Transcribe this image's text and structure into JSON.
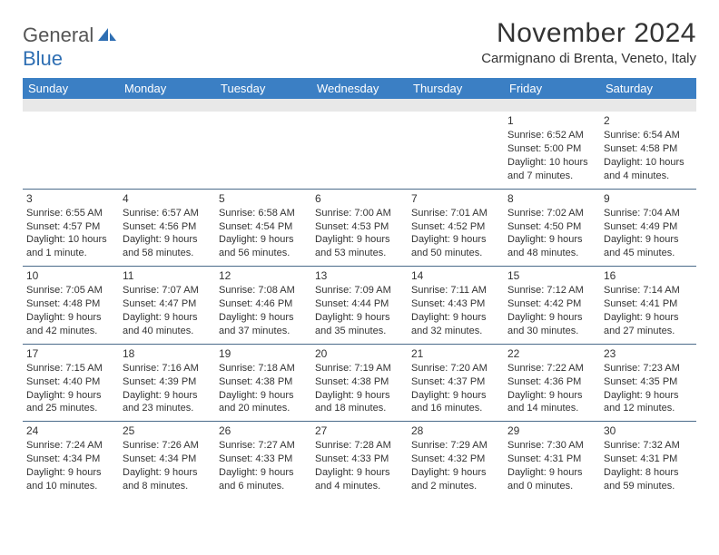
{
  "brand": {
    "general": "General",
    "blue": "Blue",
    "blue_color": "#2f6fb3"
  },
  "title": "November 2024",
  "location": "Carmignano di Brenta, Veneto, Italy",
  "colors": {
    "header_bg": "#3b7fc4",
    "header_text": "#ffffff",
    "band_bg": "#e8e8e8",
    "week_divider": "#4a6a8a",
    "text": "#333333",
    "page_bg": "#ffffff"
  },
  "days_of_week": [
    "Sunday",
    "Monday",
    "Tuesday",
    "Wednesday",
    "Thursday",
    "Friday",
    "Saturday"
  ],
  "weeks": [
    [
      null,
      null,
      null,
      null,
      null,
      {
        "n": "1",
        "sr": "Sunrise: 6:52 AM",
        "ss": "Sunset: 5:00 PM",
        "dl": "Daylight: 10 hours and 7 minutes."
      },
      {
        "n": "2",
        "sr": "Sunrise: 6:54 AM",
        "ss": "Sunset: 4:58 PM",
        "dl": "Daylight: 10 hours and 4 minutes."
      }
    ],
    [
      {
        "n": "3",
        "sr": "Sunrise: 6:55 AM",
        "ss": "Sunset: 4:57 PM",
        "dl": "Daylight: 10 hours and 1 minute."
      },
      {
        "n": "4",
        "sr": "Sunrise: 6:57 AM",
        "ss": "Sunset: 4:56 PM",
        "dl": "Daylight: 9 hours and 58 minutes."
      },
      {
        "n": "5",
        "sr": "Sunrise: 6:58 AM",
        "ss": "Sunset: 4:54 PM",
        "dl": "Daylight: 9 hours and 56 minutes."
      },
      {
        "n": "6",
        "sr": "Sunrise: 7:00 AM",
        "ss": "Sunset: 4:53 PM",
        "dl": "Daylight: 9 hours and 53 minutes."
      },
      {
        "n": "7",
        "sr": "Sunrise: 7:01 AM",
        "ss": "Sunset: 4:52 PM",
        "dl": "Daylight: 9 hours and 50 minutes."
      },
      {
        "n": "8",
        "sr": "Sunrise: 7:02 AM",
        "ss": "Sunset: 4:50 PM",
        "dl": "Daylight: 9 hours and 48 minutes."
      },
      {
        "n": "9",
        "sr": "Sunrise: 7:04 AM",
        "ss": "Sunset: 4:49 PM",
        "dl": "Daylight: 9 hours and 45 minutes."
      }
    ],
    [
      {
        "n": "10",
        "sr": "Sunrise: 7:05 AM",
        "ss": "Sunset: 4:48 PM",
        "dl": "Daylight: 9 hours and 42 minutes."
      },
      {
        "n": "11",
        "sr": "Sunrise: 7:07 AM",
        "ss": "Sunset: 4:47 PM",
        "dl": "Daylight: 9 hours and 40 minutes."
      },
      {
        "n": "12",
        "sr": "Sunrise: 7:08 AM",
        "ss": "Sunset: 4:46 PM",
        "dl": "Daylight: 9 hours and 37 minutes."
      },
      {
        "n": "13",
        "sr": "Sunrise: 7:09 AM",
        "ss": "Sunset: 4:44 PM",
        "dl": "Daylight: 9 hours and 35 minutes."
      },
      {
        "n": "14",
        "sr": "Sunrise: 7:11 AM",
        "ss": "Sunset: 4:43 PM",
        "dl": "Daylight: 9 hours and 32 minutes."
      },
      {
        "n": "15",
        "sr": "Sunrise: 7:12 AM",
        "ss": "Sunset: 4:42 PM",
        "dl": "Daylight: 9 hours and 30 minutes."
      },
      {
        "n": "16",
        "sr": "Sunrise: 7:14 AM",
        "ss": "Sunset: 4:41 PM",
        "dl": "Daylight: 9 hours and 27 minutes."
      }
    ],
    [
      {
        "n": "17",
        "sr": "Sunrise: 7:15 AM",
        "ss": "Sunset: 4:40 PM",
        "dl": "Daylight: 9 hours and 25 minutes."
      },
      {
        "n": "18",
        "sr": "Sunrise: 7:16 AM",
        "ss": "Sunset: 4:39 PM",
        "dl": "Daylight: 9 hours and 23 minutes."
      },
      {
        "n": "19",
        "sr": "Sunrise: 7:18 AM",
        "ss": "Sunset: 4:38 PM",
        "dl": "Daylight: 9 hours and 20 minutes."
      },
      {
        "n": "20",
        "sr": "Sunrise: 7:19 AM",
        "ss": "Sunset: 4:38 PM",
        "dl": "Daylight: 9 hours and 18 minutes."
      },
      {
        "n": "21",
        "sr": "Sunrise: 7:20 AM",
        "ss": "Sunset: 4:37 PM",
        "dl": "Daylight: 9 hours and 16 minutes."
      },
      {
        "n": "22",
        "sr": "Sunrise: 7:22 AM",
        "ss": "Sunset: 4:36 PM",
        "dl": "Daylight: 9 hours and 14 minutes."
      },
      {
        "n": "23",
        "sr": "Sunrise: 7:23 AM",
        "ss": "Sunset: 4:35 PM",
        "dl": "Daylight: 9 hours and 12 minutes."
      }
    ],
    [
      {
        "n": "24",
        "sr": "Sunrise: 7:24 AM",
        "ss": "Sunset: 4:34 PM",
        "dl": "Daylight: 9 hours and 10 minutes."
      },
      {
        "n": "25",
        "sr": "Sunrise: 7:26 AM",
        "ss": "Sunset: 4:34 PM",
        "dl": "Daylight: 9 hours and 8 minutes."
      },
      {
        "n": "26",
        "sr": "Sunrise: 7:27 AM",
        "ss": "Sunset: 4:33 PM",
        "dl": "Daylight: 9 hours and 6 minutes."
      },
      {
        "n": "27",
        "sr": "Sunrise: 7:28 AM",
        "ss": "Sunset: 4:33 PM",
        "dl": "Daylight: 9 hours and 4 minutes."
      },
      {
        "n": "28",
        "sr": "Sunrise: 7:29 AM",
        "ss": "Sunset: 4:32 PM",
        "dl": "Daylight: 9 hours and 2 minutes."
      },
      {
        "n": "29",
        "sr": "Sunrise: 7:30 AM",
        "ss": "Sunset: 4:31 PM",
        "dl": "Daylight: 9 hours and 0 minutes."
      },
      {
        "n": "30",
        "sr": "Sunrise: 7:32 AM",
        "ss": "Sunset: 4:31 PM",
        "dl": "Daylight: 8 hours and 59 minutes."
      }
    ]
  ]
}
